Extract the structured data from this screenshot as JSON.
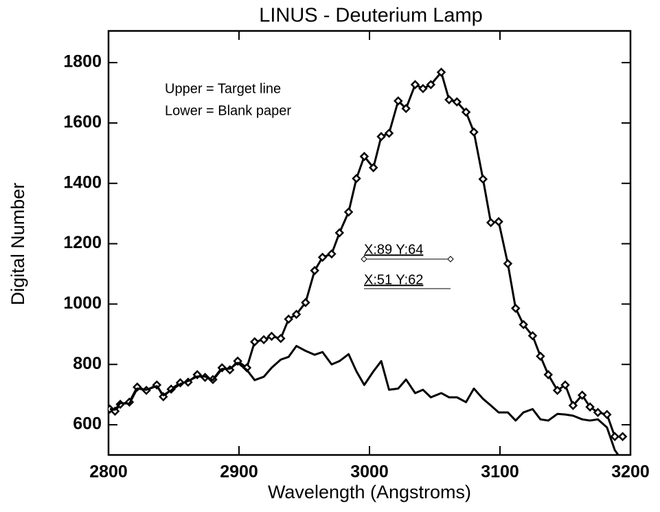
{
  "chart_data": {
    "type": "line",
    "title": "LINUS - Deuterium Lamp",
    "xlabel": "Wavelength (Angstroms)",
    "ylabel": "Digital Number",
    "xlim": [
      2800,
      3200
    ],
    "ylim": [
      500,
      1905
    ],
    "xticks": [
      2800,
      2900,
      3000,
      3100,
      3200
    ],
    "yticks": [
      600,
      800,
      1000,
      1200,
      1400,
      1600,
      1800
    ],
    "annotations": [
      "Upper = Target line",
      "Lower = Blank paper",
      "X:89 Y:64",
      "X:51 Y:62"
    ],
    "x": [
      2801,
      2805,
      2809,
      2816,
      2822,
      2829,
      2837,
      2842,
      2848,
      2855,
      2861,
      2868,
      2874,
      2880,
      2887,
      2893,
      2899,
      2906,
      2912,
      2919,
      2925,
      2932,
      2938,
      2944,
      2951,
      2958,
      2964,
      2971,
      2977,
      2984,
      2990,
      2996,
      3003,
      3009,
      3015,
      3022,
      3028,
      3035,
      3041,
      3047,
      3055,
      3061,
      3067,
      3074,
      3080,
      3087,
      3093,
      3099,
      3106,
      3112,
      3118,
      3125,
      3131,
      3137,
      3144,
      3150,
      3156,
      3163,
      3169,
      3175,
      3182,
      3188,
      3194
    ],
    "series": [
      {
        "color": "#000000",
        "markers": true,
        "values": [
          652,
          645,
          668,
          675,
          725,
          714,
          732,
          693,
          718,
          739,
          741,
          766,
          757,
          750,
          789,
          782,
          811,
          789,
          875,
          882,
          893,
          886,
          950,
          966,
          1005,
          1111,
          1155,
          1166,
          1236,
          1305,
          1416,
          1489,
          1452,
          1555,
          1566,
          1673,
          1648,
          1727,
          1714,
          1727,
          1768,
          1677,
          1670,
          1636,
          1570,
          1414,
          1270,
          1273,
          1134,
          986,
          932,
          895,
          827,
          766,
          714,
          732,
          664,
          698,
          659,
          641,
          634,
          561,
          561
        ]
      },
      {
        "color": "#000000",
        "markers": false,
        "values": [
          652,
          650,
          672,
          670,
          720,
          716,
          728,
          698,
          714,
          735,
          745,
          760,
          760,
          748,
          785,
          786,
          805,
          782,
          748,
          759,
          789,
          816,
          825,
          861,
          845,
          832,
          841,
          800,
          811,
          834,
          777,
          732,
          777,
          811,
          716,
          720,
          750,
          705,
          716,
          691,
          705,
          691,
          691,
          675,
          720,
          686,
          664,
          641,
          641,
          614,
          641,
          652,
          618,
          614,
          636,
          634,
          630,
          618,
          614,
          618,
          591,
          516,
          480
        ]
      }
    ]
  }
}
